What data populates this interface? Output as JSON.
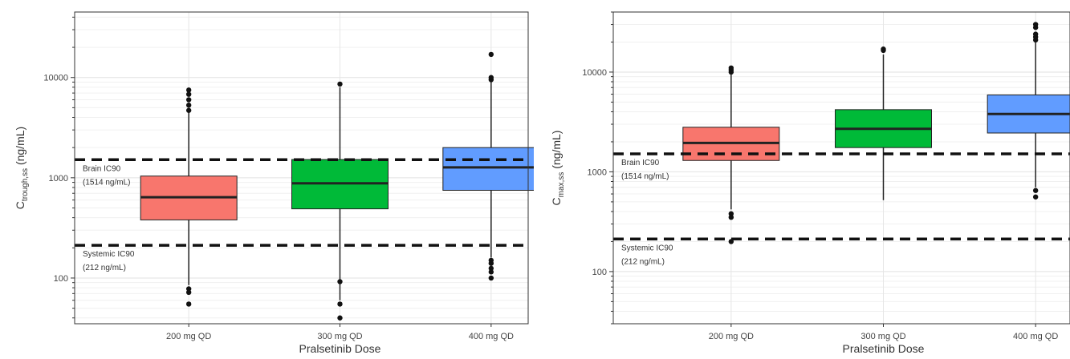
{
  "chart_data": [
    {
      "type": "box",
      "xlabel": "Pralsetinib Dose",
      "ylabel": {
        "main": "C",
        "sub": "trough,ss",
        "unit": " (ng/mL)"
      },
      "yscale": "log",
      "ylim": [
        35,
        45000
      ],
      "yticks": [
        {
          "value": 100,
          "label": "100"
        },
        {
          "value": 1000,
          "label": "1000"
        },
        {
          "value": 10000,
          "label": "10000"
        }
      ],
      "grid": true,
      "categories": [
        "200 mg QD",
        "300 mg QD",
        "400 mg QD"
      ],
      "boxes": [
        {
          "category": "200 mg QD",
          "color": "#f8766d",
          "q1": 380,
          "median": 640,
          "q3": 1040,
          "whisker_low": 85,
          "whisker_high": 4600,
          "outliers": [
            78,
            72,
            55,
            4700,
            5300,
            6000,
            6800,
            7500
          ]
        },
        {
          "category": "300 mg QD",
          "color": "#00ba38",
          "q1": 490,
          "median": 880,
          "q3": 1520,
          "whisker_low": 60,
          "whisker_high": 8000,
          "outliers": [
            92,
            55,
            40,
            8600
          ]
        },
        {
          "category": "400 mg QD",
          "color": "#619cff",
          "q1": 750,
          "median": 1270,
          "q3": 2000,
          "whisker_low": 160,
          "whisker_high": 9000,
          "outliers": [
            150,
            140,
            125,
            115,
            100,
            9500,
            10000,
            17000
          ]
        }
      ],
      "reference_lines": [
        {
          "value": 1514,
          "label_lines": [
            "Brain IC90",
            "(1514 ng/mL)"
          ]
        },
        {
          "value": 212,
          "label_lines": [
            "Systemic IC90",
            "(212 ng/mL)"
          ]
        }
      ]
    },
    {
      "type": "box",
      "xlabel": "Pralsetinib Dose",
      "ylabel": {
        "main": "C",
        "sub": "max,ss",
        "unit": " (ng/mL)"
      },
      "yscale": "log",
      "ylim": [
        30,
        40000
      ],
      "yticks": [
        {
          "value": 100,
          "label": "100"
        },
        {
          "value": 1000,
          "label": "1000"
        },
        {
          "value": 10000,
          "label": "10000"
        }
      ],
      "grid": true,
      "categories": [
        "200 mg QD",
        "300 mg QD",
        "400 mg QD"
      ],
      "boxes": [
        {
          "category": "200 mg QD",
          "color": "#f8766d",
          "q1": 1300,
          "median": 1950,
          "q3": 2800,
          "whisker_low": 420,
          "whisker_high": 9500,
          "outliers": [
            380,
            350,
            200,
            10000,
            10500,
            11000
          ]
        },
        {
          "category": "300 mg QD",
          "color": "#00ba38",
          "q1": 1750,
          "median": 2700,
          "q3": 4200,
          "whisker_low": 520,
          "whisker_high": 15000,
          "outliers": [
            16500,
            17000
          ]
        },
        {
          "category": "400 mg QD",
          "color": "#619cff",
          "q1": 2450,
          "median": 3800,
          "q3": 5900,
          "whisker_low": 700,
          "whisker_high": 20000,
          "outliers": [
            650,
            560,
            21000,
            22500,
            24000,
            28000,
            30000
          ]
        }
      ],
      "reference_lines": [
        {
          "value": 1514,
          "label_lines": [
            "Brain IC90",
            "(1514 ng/mL)"
          ]
        },
        {
          "value": 212,
          "label_lines": [
            "Systemic IC90",
            "(212 ng/mL)"
          ]
        }
      ]
    }
  ]
}
